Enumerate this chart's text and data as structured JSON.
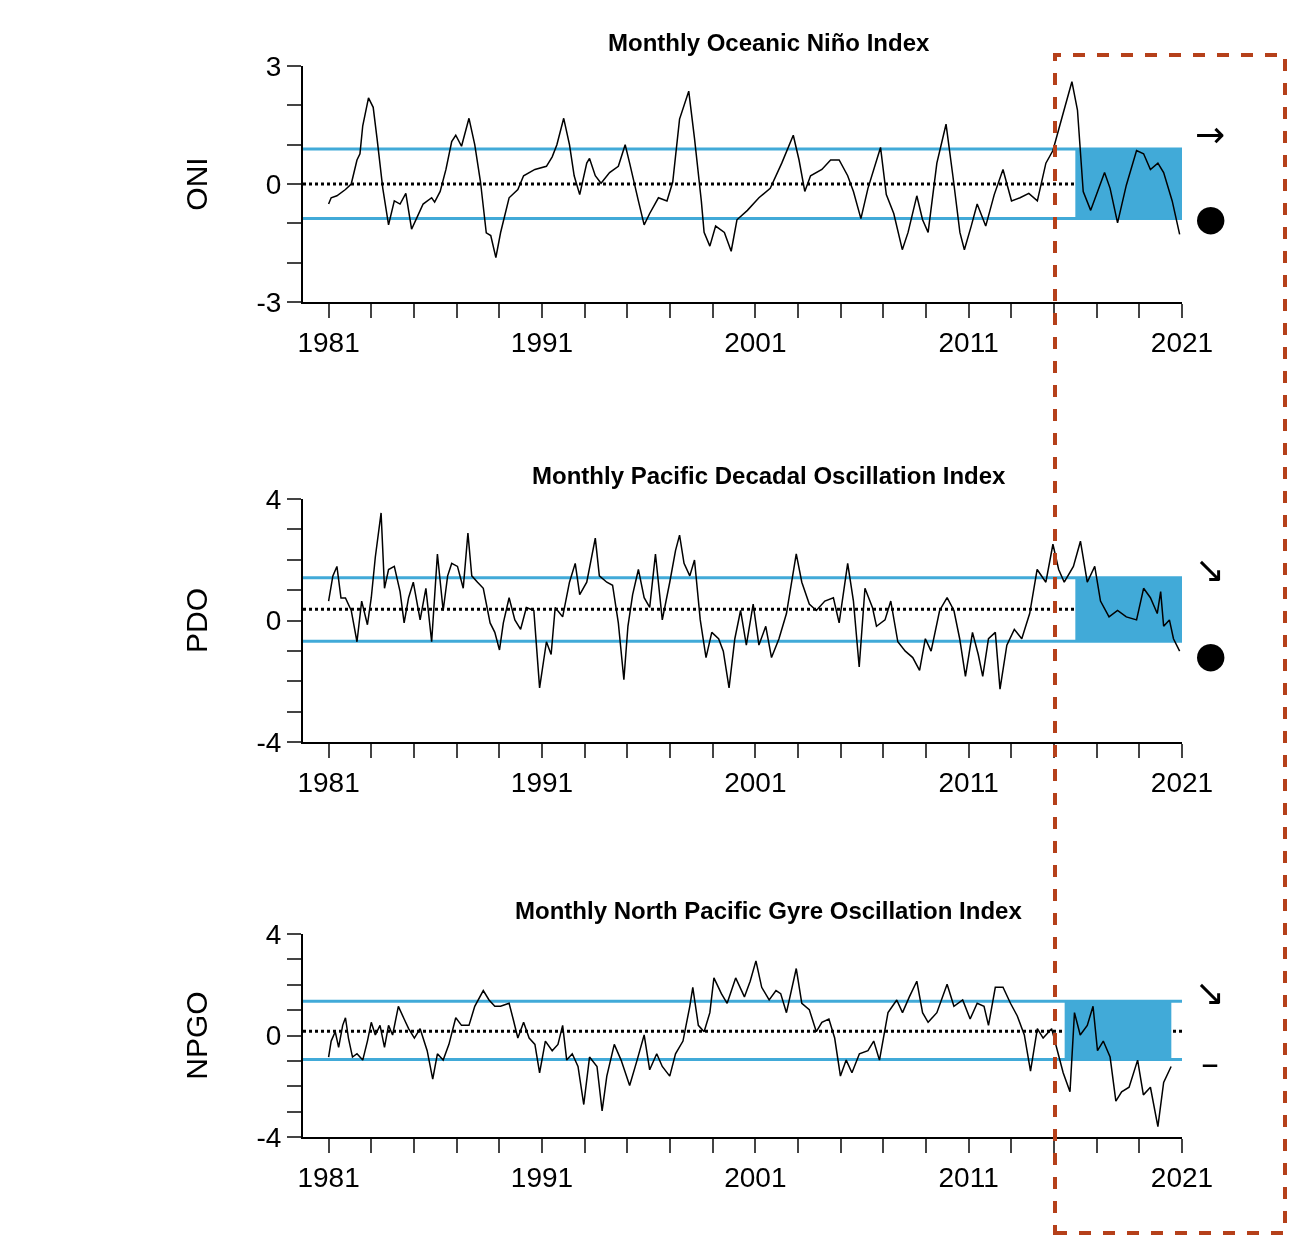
{
  "chart_data": [
    {
      "type": "line",
      "title": "Monthly Oceanic Niño Index",
      "ylabel": "ONI",
      "x": [
        1981.0,
        1981.12,
        1981.39,
        1981.79,
        1982.06,
        1982.33,
        1982.47,
        1982.6,
        1982.87,
        1983.09,
        1983.27,
        1983.54,
        1983.81,
        1984.08,
        1984.35,
        1984.62,
        1984.89,
        1985.16,
        1985.43,
        1985.83,
        1985.97,
        1986.23,
        1986.5,
        1986.77,
        1986.96,
        1987.23,
        1987.58,
        1987.85,
        1988.12,
        1988.39,
        1988.6,
        1988.84,
        1989.06,
        1989.46,
        1989.87,
        1990.14,
        1990.67,
        1991.21,
        1991.48,
        1991.7,
        1992.02,
        1992.29,
        1992.51,
        1992.77,
        1993.1,
        1993.23,
        1993.5,
        1993.77,
        1994.17,
        1994.58,
        1994.9,
        1995.11,
        1995.52,
        1995.79,
        1996.05,
        1996.46,
        1996.86,
        1997.13,
        1997.45,
        1997.88,
        1998.15,
        1998.47,
        1998.6,
        1998.87,
        1999.14,
        1999.55,
        1999.87,
        2000.14,
        2000.63,
        2001.17,
        2001.7,
        2002.24,
        2002.78,
        2003.05,
        2003.32,
        2003.59,
        2004.12,
        2004.53,
        2004.93,
        2005.33,
        2005.6,
        2005.95,
        2006.28,
        2006.87,
        2007.14,
        2007.49,
        2007.89,
        2008.16,
        2008.57,
        2008.84,
        2009.1,
        2009.51,
        2009.94,
        2010.26,
        2010.59,
        2010.8,
        2011.12,
        2011.4,
        2011.8,
        2012.2,
        2012.61,
        2013.01,
        2013.41,
        2013.82,
        2014.22,
        2014.62,
        2014.95,
        2015.43,
        2015.84,
        2016.1,
        2016.37,
        2016.72,
        2017.1,
        2017.37,
        2017.63,
        2017.98,
        2018.39,
        2018.87,
        2019.2,
        2019.52,
        2019.87,
        2020.14,
        2020.54,
        2020.89
      ],
      "series": [
        {
          "color": "#000000",
          "values": [
            -0.51,
            -0.35,
            -0.3,
            -0.14,
            0.0,
            0.61,
            0.77,
            1.48,
            2.19,
            1.95,
            1.16,
            -0.11,
            -1.04,
            -0.43,
            -0.51,
            -0.24,
            -1.15,
            -0.83,
            -0.51,
            -0.35,
            -0.46,
            -0.19,
            0.37,
            1.08,
            1.24,
            0.96,
            1.67,
            1.0,
            0.05,
            -1.24,
            -1.31,
            -1.87,
            -1.24,
            -0.35,
            -0.14,
            0.21,
            0.37,
            0.45,
            0.69,
            1.0,
            1.67,
            1.0,
            0.21,
            -0.27,
            0.53,
            0.65,
            0.21,
            0.02,
            0.29,
            0.45,
            1.0,
            0.53,
            -0.43,
            -1.04,
            -0.75,
            -0.35,
            -0.43,
            0.05,
            1.65,
            2.36,
            1.16,
            -0.43,
            -1.23,
            -1.58,
            -1.07,
            -1.23,
            -1.71,
            -0.91,
            -0.67,
            -0.35,
            -0.11,
            0.53,
            1.24,
            0.61,
            -0.19,
            0.21,
            0.37,
            0.61,
            0.61,
            0.21,
            -0.19,
            -0.88,
            -0.11,
            0.93,
            -0.27,
            -0.75,
            -1.67,
            -1.23,
            -0.3,
            -0.91,
            -1.23,
            0.53,
            1.52,
            0.21,
            -1.23,
            -1.67,
            -1.07,
            -0.51,
            -1.07,
            -0.27,
            0.37,
            -0.43,
            -0.35,
            -0.24,
            -0.43,
            0.53,
            0.85,
            1.8,
            2.6,
            1.88,
            -0.19,
            -0.67,
            -0.11,
            0.29,
            -0.11,
            -0.99,
            -0.03,
            0.85,
            0.77,
            0.37,
            0.53,
            0.29,
            -0.43,
            -1.28
          ]
        }
      ],
      "xlim": [
        1979.8,
        2021
      ],
      "xticks": [
        1981,
        {
          "value": 1983,
          "label": null
        },
        {
          "value": 1985,
          "label": null
        },
        {
          "value": 1987,
          "label": null
        },
        {
          "value": 1989,
          "label": null
        },
        1991,
        {
          "value": 1993,
          "label": null
        },
        {
          "value": 1995,
          "label": null
        },
        {
          "value": 1997,
          "label": null
        },
        {
          "value": 1999,
          "label": null
        },
        2001,
        {
          "value": 2003,
          "label": null
        },
        {
          "value": 2005,
          "label": null
        },
        {
          "value": 2007,
          "label": null
        },
        {
          "value": 2009,
          "label": null
        },
        2011,
        {
          "value": 2013,
          "label": null
        },
        {
          "value": 2015,
          "label": null
        },
        {
          "value": 2017,
          "label": null
        },
        {
          "value": 2019,
          "label": null
        },
        2021
      ],
      "ylim": [
        -3,
        3
      ],
      "yticks": [
        -3,
        {
          "value": -2,
          "label": null
        },
        {
          "value": -1,
          "label": null
        },
        0,
        {
          "value": 1,
          "label": null
        },
        {
          "value": 2,
          "label": null
        },
        3
      ],
      "ref_lines": [
        {
          "axis": "y",
          "value": 0.89,
          "color": "#41aad8",
          "line_style": "solid"
        },
        {
          "axis": "y",
          "value": -0.88,
          "color": "#41aad8",
          "line_style": "solid"
        },
        {
          "axis": "y",
          "value": 0,
          "color": "#000000",
          "line_style": "dotted"
        }
      ],
      "bands": [
        {
          "axis": "x",
          "from": 2016,
          "to": 2021,
          "color": "#41aad8"
        }
      ],
      "annotations": [
        "→",
        "●"
      ],
      "grid": false
    },
    {
      "type": "line",
      "title": "Monthly Pacific Decadal Oscillation Index",
      "ylabel": "PDO",
      "x": [
        1981.0,
        1981.2,
        1981.39,
        1981.58,
        1981.79,
        1982.06,
        1982.33,
        1982.55,
        1982.82,
        1983.0,
        1983.19,
        1983.46,
        1983.62,
        1983.81,
        1984.08,
        1984.35,
        1984.54,
        1984.75,
        1984.97,
        1985.29,
        1985.56,
        1985.83,
        1986.1,
        1986.37,
        1986.58,
        1986.77,
        1987.04,
        1987.31,
        1987.53,
        1987.71,
        1987.98,
        1988.25,
        1988.57,
        1988.79,
        1989.01,
        1989.19,
        1989.46,
        1989.73,
        1990.0,
        1990.27,
        1990.62,
        1990.89,
        1991.21,
        1991.43,
        1991.62,
        1991.97,
        1992.29,
        1992.56,
        1992.77,
        1993.1,
        1993.5,
        1993.69,
        1994.04,
        1994.31,
        1994.58,
        1994.84,
        1995.03,
        1995.25,
        1995.52,
        1995.79,
        1996.05,
        1996.32,
        1996.64,
        1996.99,
        1997.26,
        1997.45,
        1997.66,
        1997.93,
        1998.15,
        1998.42,
        1998.69,
        1998.96,
        1999.28,
        1999.5,
        1999.77,
        2000.04,
        2000.31,
        2000.58,
        2000.9,
        2001.17,
        2001.49,
        2001.76,
        2002.11,
        2002.46,
        2002.92,
        2003.18,
        2003.53,
        2003.86,
        2004.26,
        2004.66,
        2004.93,
        2005.33,
        2005.6,
        2005.87,
        2006.14,
        2006.49,
        2006.68,
        2007.08,
        2007.35,
        2007.68,
        2008.03,
        2008.38,
        2008.7,
        2008.97,
        2009.24,
        2009.64,
        2009.99,
        2010.31,
        2010.58,
        2010.85,
        2011.18,
        2011.45,
        2011.66,
        2011.93,
        2012.25,
        2012.47,
        2012.79,
        2013.14,
        2013.49,
        2013.86,
        2014.21,
        2014.62,
        2014.95,
        2015.22,
        2015.48,
        2015.91,
        2016.24,
        2016.56,
        2016.91,
        2017.18,
        2017.58,
        2017.98,
        2018.39,
        2018.87,
        2019.2,
        2019.52,
        2019.84,
        2020.0,
        2020.14,
        2020.41,
        2020.6,
        2020.89
      ],
      "series": [
        {
          "color": "#000000",
          "values": [
            0.64,
            1.47,
            1.78,
            0.74,
            0.74,
            0.33,
            -0.7,
            0.64,
            -0.14,
            0.75,
            2.09,
            3.54,
            1.06,
            1.68,
            1.78,
            0.95,
            -0.08,
            0.75,
            1.26,
            0.02,
            1.06,
            -0.7,
            2.19,
            0.33,
            1.47,
            1.88,
            1.78,
            1.06,
            2.88,
            1.47,
            1.26,
            1.06,
            -0.08,
            -0.39,
            -0.97,
            -0.08,
            0.75,
            0.02,
            -0.29,
            0.43,
            0.33,
            -2.22,
            -0.7,
            -1.12,
            0.43,
            0.12,
            1.26,
            1.88,
            0.85,
            1.26,
            2.71,
            1.47,
            1.26,
            1.16,
            -0.08,
            -1.95,
            -0.19,
            0.85,
            1.68,
            0.75,
            0.43,
            2.19,
            0.02,
            1.26,
            2.3,
            2.81,
            1.88,
            1.47,
            1.99,
            0.02,
            -1.22,
            -0.39,
            -0.6,
            -1.01,
            -2.22,
            -0.6,
            0.33,
            -0.81,
            0.54,
            -0.81,
            -0.19,
            -1.22,
            -0.6,
            0.23,
            2.19,
            1.26,
            0.54,
            0.33,
            0.64,
            0.75,
            -0.08,
            1.88,
            0.64,
            -1.53,
            1.06,
            0.43,
            -0.19,
            0.02,
            0.64,
            -0.7,
            -1.01,
            -1.22,
            -1.64,
            -0.6,
            -1.01,
            0.33,
            0.75,
            0.33,
            -0.6,
            -1.84,
            -0.39,
            -1.12,
            -1.84,
            -0.6,
            -0.39,
            -2.26,
            -0.81,
            -0.29,
            -0.6,
            0.23,
            1.68,
            1.26,
            2.51,
            1.68,
            1.26,
            1.78,
            2.61,
            1.26,
            1.78,
            0.64,
            0.12,
            0.33,
            0.12,
            0.02,
            1.06,
            0.75,
            0.23,
            0.95,
            -0.19,
            0.02,
            -0.6,
            -1.01
          ]
        }
      ],
      "xlim": [
        1979.8,
        2021
      ],
      "xticks": [
        1981,
        {
          "value": 1983,
          "label": null
        },
        {
          "value": 1985,
          "label": null
        },
        {
          "value": 1987,
          "label": null
        },
        {
          "value": 1989,
          "label": null
        },
        1991,
        {
          "value": 1993,
          "label": null
        },
        {
          "value": 1995,
          "label": null
        },
        {
          "value": 1997,
          "label": null
        },
        {
          "value": 1999,
          "label": null
        },
        2001,
        {
          "value": 2003,
          "label": null
        },
        {
          "value": 2005,
          "label": null
        },
        {
          "value": 2007,
          "label": null
        },
        {
          "value": 2009,
          "label": null
        },
        2011,
        {
          "value": 2013,
          "label": null
        },
        {
          "value": 2015,
          "label": null
        },
        {
          "value": 2017,
          "label": null
        },
        {
          "value": 2019,
          "label": null
        },
        2021
      ],
      "ylim": [
        -4,
        4
      ],
      "yticks": [
        -4,
        {
          "value": -3,
          "label": null
        },
        {
          "value": -2,
          "label": null
        },
        {
          "value": -1,
          "label": null
        },
        0,
        {
          "value": 1,
          "label": null
        },
        {
          "value": 2,
          "label": null
        },
        {
          "value": 3,
          "label": null
        },
        4
      ],
      "ref_lines": [
        {
          "axis": "y",
          "value": 1.41,
          "color": "#41aad8",
          "line_style": "solid"
        },
        {
          "axis": "y",
          "value": -0.68,
          "color": "#41aad8",
          "line_style": "solid"
        },
        {
          "axis": "y",
          "value": 0.37,
          "color": "#000000",
          "line_style": "dotted"
        }
      ],
      "bands": [
        {
          "axis": "x",
          "from": 2016,
          "to": 2021,
          "color": "#41aad8"
        }
      ],
      "annotations": [
        "↘",
        "●"
      ],
      "grid": false
    },
    {
      "type": "line",
      "title": "Monthly North Pacific Gyre Oscillation Index",
      "ylabel": "NPGO",
      "x": [
        1981.0,
        1981.12,
        1981.31,
        1981.47,
        1981.66,
        1981.79,
        1981.93,
        1982.12,
        1982.33,
        1982.6,
        1982.82,
        1983.0,
        1983.19,
        1983.41,
        1983.62,
        1983.81,
        1984.0,
        1984.27,
        1984.54,
        1984.75,
        1985.02,
        1985.29,
        1985.62,
        1985.88,
        1986.1,
        1986.37,
        1986.64,
        1986.96,
        1987.23,
        1987.58,
        1987.85,
        1988.25,
        1988.52,
        1988.79,
        1989.06,
        1989.46,
        1989.65,
        1989.87,
        1990.14,
        1990.4,
        1990.67,
        1990.89,
        1991.16,
        1991.48,
        1991.75,
        1991.97,
        1992.16,
        1992.42,
        1992.69,
        1992.96,
        1993.23,
        1993.58,
        1993.82,
        1994.04,
        1994.39,
        1994.71,
        1995.11,
        1995.46,
        1995.79,
        1996.05,
        1996.38,
        1996.64,
        1996.99,
        1997.26,
        1997.61,
        1997.93,
        1998.07,
        1998.33,
        1998.6,
        1998.87,
        1999.06,
        1999.41,
        1999.68,
        2000.08,
        2000.49,
        2000.76,
        2001.03,
        2001.3,
        2001.65,
        2001.97,
        2002.19,
        2002.46,
        2002.92,
        2003.18,
        2003.53,
        2003.86,
        2004.12,
        2004.45,
        2004.72,
        2004.99,
        2005.26,
        2005.53,
        2005.88,
        2006.28,
        2006.55,
        2006.82,
        2007.22,
        2007.63,
        2007.9,
        2008.22,
        2008.57,
        2008.84,
        2009.1,
        2009.51,
        2009.99,
        2010.31,
        2010.72,
        2011.07,
        2011.4,
        2011.72,
        2011.93,
        2012.25,
        2012.61,
        2012.96,
        2013.28,
        2013.61,
        2013.9,
        2014.22,
        2014.49,
        2014.89,
        2015.16,
        2015.43,
        2015.75,
        2015.96,
        2016.23,
        2016.56,
        2016.83,
        2017.04,
        2017.31,
        2017.63,
        2017.9,
        2018.17,
        2018.52,
        2018.92,
        2019.19,
        2019.52,
        2019.87,
        2020.14,
        2020.49
      ],
      "series": [
        {
          "color": "#000000",
          "values": [
            -0.85,
            -0.22,
            0.15,
            -0.47,
            0.4,
            0.7,
            -0.1,
            -0.85,
            -0.72,
            -0.97,
            -0.22,
            0.52,
            0.02,
            0.4,
            -0.47,
            0.4,
            0.02,
            1.15,
            0.65,
            0.27,
            -0.1,
            0.27,
            -0.6,
            -1.72,
            -0.72,
            -0.97,
            -0.35,
            0.7,
            0.4,
            0.4,
            1.15,
            1.77,
            1.4,
            1.15,
            1.15,
            1.27,
            0.65,
            -0.1,
            0.52,
            -0.1,
            -0.35,
            -1.47,
            -0.22,
            -0.6,
            -0.35,
            0.4,
            -0.97,
            -0.72,
            -1.22,
            -2.72,
            -0.85,
            -1.22,
            -2.97,
            -1.6,
            -0.35,
            -0.97,
            -1.97,
            -0.97,
            0.02,
            -1.35,
            -0.72,
            -1.22,
            -1.6,
            -0.72,
            -0.22,
            1.15,
            1.9,
            0.4,
            0.15,
            0.9,
            2.27,
            1.65,
            1.27,
            2.27,
            1.52,
            2.14,
            2.94,
            1.9,
            1.4,
            1.77,
            1.65,
            0.9,
            2.64,
            1.27,
            1.02,
            0.15,
            0.52,
            0.65,
            -0.1,
            -1.6,
            -0.97,
            -1.47,
            -0.72,
            -0.6,
            -0.22,
            -0.97,
            0.9,
            1.4,
            0.9,
            1.52,
            2.14,
            0.9,
            0.52,
            0.9,
            2.02,
            1.15,
            1.4,
            0.65,
            1.27,
            1.15,
            0.4,
            1.9,
            1.9,
            1.27,
            0.77,
            0.02,
            -1.4,
            0.27,
            -0.1,
            0.27,
            -0.6,
            -1.47,
            -2.22,
            0.9,
            0.02,
            0.4,
            1.15,
            -0.6,
            -0.22,
            -0.85,
            -2.59,
            -2.22,
            -2.04,
            -0.97,
            -2.34,
            -2.04,
            -3.59,
            -1.85,
            -1.22
          ]
        }
      ],
      "xlim": [
        1979.8,
        2021
      ],
      "xticks": [
        1981,
        {
          "value": 1983,
          "label": null
        },
        {
          "value": 1985,
          "label": null
        },
        {
          "value": 1987,
          "label": null
        },
        {
          "value": 1989,
          "label": null
        },
        1991,
        {
          "value": 1993,
          "label": null
        },
        {
          "value": 1995,
          "label": null
        },
        {
          "value": 1997,
          "label": null
        },
        {
          "value": 1999,
          "label": null
        },
        2001,
        {
          "value": 2003,
          "label": null
        },
        {
          "value": 2005,
          "label": null
        },
        {
          "value": 2007,
          "label": null
        },
        {
          "value": 2009,
          "label": null
        },
        2011,
        {
          "value": 2013,
          "label": null
        },
        {
          "value": 2015,
          "label": null
        },
        {
          "value": 2017,
          "label": null
        },
        {
          "value": 2019,
          "label": null
        },
        2021
      ],
      "ylim": [
        -4,
        4
      ],
      "yticks": [
        -4,
        {
          "value": -3,
          "label": null
        },
        {
          "value": -2,
          "label": null
        },
        {
          "value": -1,
          "label": null
        },
        0,
        {
          "value": 1,
          "label": null
        },
        {
          "value": 2,
          "label": null
        },
        {
          "value": 3,
          "label": null
        },
        4
      ],
      "ref_lines": [
        {
          "axis": "y",
          "value": 1.35,
          "color": "#41aad8",
          "line_style": "solid"
        },
        {
          "axis": "y",
          "value": -0.95,
          "color": "#41aad8",
          "line_style": "solid"
        },
        {
          "axis": "y",
          "value": 0.17,
          "color": "#000000",
          "line_style": "dotted"
        }
      ],
      "bands": [
        {
          "axis": "x",
          "from": 2015.5,
          "to": 2020.5,
          "color": "#41aad8"
        }
      ],
      "annotations": [
        "↘",
        "–"
      ],
      "grid": false
    }
  ]
}
